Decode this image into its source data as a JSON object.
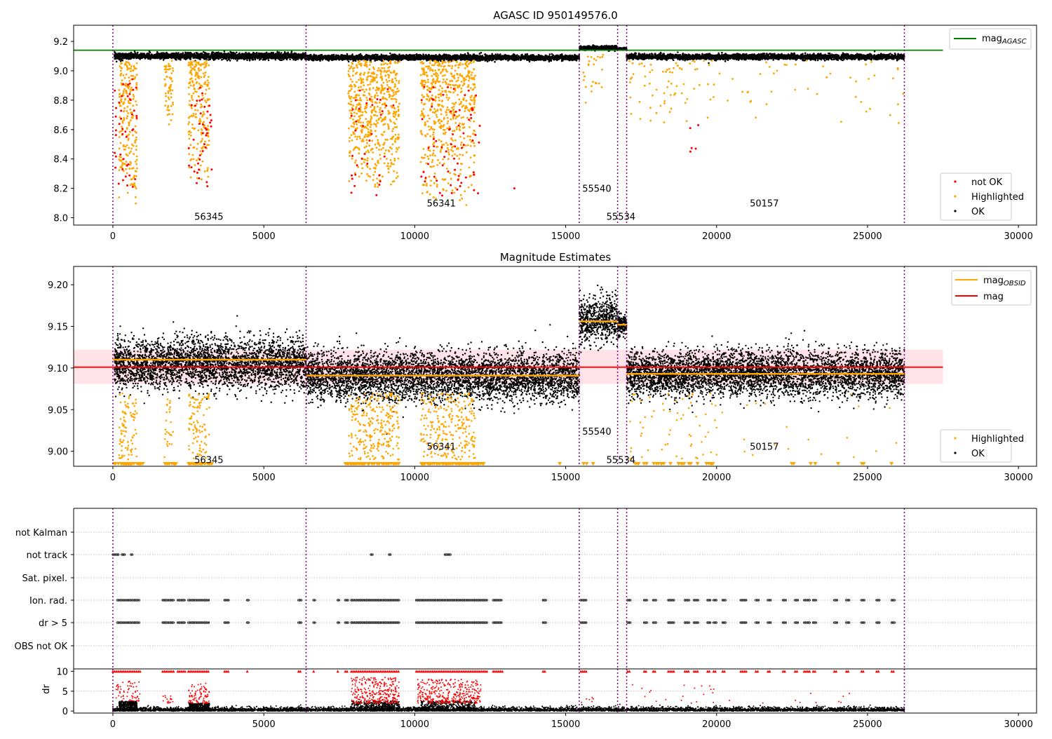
{
  "figure": {
    "vlines_x": [
      0,
      6400,
      15450,
      16720,
      17020,
      26220
    ],
    "colors": {
      "orange": "#ffa500",
      "red": "#ff0000",
      "black": "#000000",
      "green": "#008000",
      "purple": "#800080",
      "band": "#ffc0cb"
    }
  },
  "chart_data": [
    {
      "id": "panel1",
      "type": "scatter",
      "title": "AGASC ID 950149576.0",
      "xlim": [
        -1300,
        30600
      ],
      "ylim": [
        7.95,
        9.31
      ],
      "xticks": [
        0,
        5000,
        10000,
        15000,
        20000,
        25000,
        30000
      ],
      "yticks": [
        8.0,
        8.2,
        8.4,
        8.6,
        8.8,
        9.0,
        9.2
      ],
      "ytick_labels": [
        "8.0",
        "8.2",
        "8.4",
        "8.6",
        "8.8",
        "9.0",
        "9.2"
      ],
      "hline": {
        "name": "mag",
        "sub": "AGASC",
        "y": 9.14,
        "x_range": [
          -1300,
          27500
        ],
        "color": "#008000"
      },
      "legend_top": [
        {
          "label": "mag",
          "sub": "AGASC",
          "color": "#008000",
          "marker": "line"
        }
      ],
      "legend_bottom": [
        {
          "label": "not OK",
          "color": "#ff0000",
          "marker": "dot"
        },
        {
          "label": "Highlighted",
          "color": "#ffa500",
          "marker": "dot"
        },
        {
          "label": "OK",
          "color": "#000000",
          "marker": "dot"
        }
      ],
      "obsid_labels": [
        {
          "text": "56345",
          "x": 2700,
          "y": 8.01
        },
        {
          "text": "56341",
          "x": 10400,
          "y": 8.1
        },
        {
          "text": "55540",
          "x": 15550,
          "y": 8.2
        },
        {
          "text": "55534",
          "x": 16350,
          "y": 8.01
        },
        {
          "text": "50157",
          "x": 21100,
          "y": 8.1
        }
      ],
      "ok_segments": [
        {
          "x": [
            50,
            6400
          ],
          "center": 9.1,
          "spread": 0.03
        },
        {
          "x": [
            6400,
            15450
          ],
          "center": 9.09,
          "spread": 0.025
        },
        {
          "x": [
            15450,
            16720
          ],
          "center": 9.155,
          "spread": 0.02
        },
        {
          "x": [
            16720,
            17020
          ],
          "center": 9.15,
          "spread": 0.01
        },
        {
          "x": [
            17020,
            26220
          ],
          "center": 9.095,
          "spread": 0.025
        }
      ],
      "highlight_clusters": [
        {
          "x": [
            200,
            800
          ],
          "ymin": 8.05,
          "ymax": 9.07,
          "count": 220
        },
        {
          "x": [
            1700,
            2000
          ],
          "ymin": 8.58,
          "ymax": 9.07,
          "count": 60
        },
        {
          "x": [
            2500,
            3200
          ],
          "ymin": 8.2,
          "ymax": 9.07,
          "count": 220
        },
        {
          "x": [
            7800,
            9500
          ],
          "ymin": 8.15,
          "ymax": 9.07,
          "count": 600
        },
        {
          "x": [
            10200,
            12000
          ],
          "ymin": 8.08,
          "ymax": 9.07,
          "count": 600
        },
        {
          "x": [
            15500,
            16300
          ],
          "ymin": 8.75,
          "ymax": 9.12,
          "count": 25
        },
        {
          "x": [
            17100,
            20000
          ],
          "ymin": 8.6,
          "ymax": 9.07,
          "count": 70
        },
        {
          "x": [
            20000,
            26200
          ],
          "ymin": 8.6,
          "ymax": 9.07,
          "count": 45
        }
      ],
      "notok_clusters": [
        {
          "x": [
            50,
            800
          ],
          "ymin": 8.2,
          "ymax": 8.95,
          "count": 45
        },
        {
          "x": [
            2500,
            3300
          ],
          "ymin": 8.2,
          "ymax": 8.9,
          "count": 40
        },
        {
          "x": [
            7900,
            9300
          ],
          "ymin": 8.15,
          "ymax": 8.9,
          "count": 35
        },
        {
          "x": [
            10200,
            12200
          ],
          "ymin": 8.15,
          "ymax": 8.9,
          "count": 70
        },
        {
          "x": [
            13300,
            13300
          ],
          "ymin": 8.2,
          "ymax": 8.2,
          "count": 1
        },
        {
          "x": [
            18800,
            19800
          ],
          "ymin": 8.3,
          "ymax": 8.75,
          "count": 5
        }
      ]
    },
    {
      "id": "panel2",
      "type": "scatter",
      "title": "Magnitude Estimates",
      "xlim": [
        -1300,
        30600
      ],
      "ylim": [
        8.982,
        9.222
      ],
      "xticks": [
        0,
        5000,
        10000,
        15000,
        20000,
        25000,
        30000
      ],
      "yticks": [
        9.0,
        9.05,
        9.1,
        9.15,
        9.2
      ],
      "ytick_labels": [
        "9.00",
        "9.05",
        "9.10",
        "9.15",
        "9.20"
      ],
      "band": {
        "y": [
          9.081,
          9.122
        ],
        "x_range": [
          -1300,
          27500
        ]
      },
      "mag_line": {
        "y": 9.101,
        "x_range": [
          -1300,
          27500
        ],
        "color": "#ff0000"
      },
      "obsid_mag_segments": [
        {
          "x": [
            0,
            6400
          ],
          "y": 9.11
        },
        {
          "x": [
            6400,
            15450
          ],
          "y": 9.091
        },
        {
          "x": [
            15450,
            16720
          ],
          "y": 9.156
        },
        {
          "x": [
            16720,
            17020
          ],
          "y": 9.152
        },
        {
          "x": [
            17020,
            26220
          ],
          "y": 9.093
        }
      ],
      "legend_top": [
        {
          "label": "mag",
          "sub": "OBSID",
          "color": "#ffa500",
          "marker": "line"
        },
        {
          "label": "mag",
          "sub": "",
          "color": "#ff0000",
          "marker": "line"
        }
      ],
      "legend_bottom": [
        {
          "label": "Highlighted",
          "color": "#ffa500",
          "marker": "dot"
        },
        {
          "label": "OK",
          "color": "#000000",
          "marker": "dot"
        }
      ],
      "obsid_labels": [
        {
          "text": "56345",
          "x": 2700,
          "y": 8.99
        },
        {
          "text": "56341",
          "x": 10400,
          "y": 9.006
        },
        {
          "text": "55540",
          "x": 15550,
          "y": 9.024
        },
        {
          "text": "55534",
          "x": 16350,
          "y": 8.99
        },
        {
          "text": "50157",
          "x": 21100,
          "y": 9.006
        }
      ],
      "ok_segments": [
        {
          "x": [
            50,
            6400
          ],
          "center": 9.105,
          "spread": 0.04
        },
        {
          "x": [
            6400,
            15450
          ],
          "center": 9.09,
          "spread": 0.038
        },
        {
          "x": [
            15450,
            16720
          ],
          "center": 9.158,
          "spread": 0.034
        },
        {
          "x": [
            16720,
            17020
          ],
          "center": 9.152,
          "spread": 0.018
        },
        {
          "x": [
            17020,
            26220
          ],
          "center": 9.093,
          "spread": 0.036
        }
      ],
      "highlight_clusters": [
        {
          "x": [
            200,
            800
          ],
          "ymin": 8.99,
          "ymax": 9.07,
          "count": 90
        },
        {
          "x": [
            1700,
            2000
          ],
          "ymin": 8.99,
          "ymax": 9.07,
          "count": 25
        },
        {
          "x": [
            2500,
            3200
          ],
          "ymin": 8.99,
          "ymax": 9.07,
          "count": 100
        },
        {
          "x": [
            7800,
            9500
          ],
          "ymin": 8.99,
          "ymax": 9.07,
          "count": 260
        },
        {
          "x": [
            10200,
            12000
          ],
          "ymin": 8.99,
          "ymax": 9.07,
          "count": 260
        },
        {
          "x": [
            17100,
            20000
          ],
          "ymin": 8.99,
          "ymax": 9.07,
          "count": 60
        },
        {
          "x": [
            20000,
            26200
          ],
          "ymin": 8.99,
          "ymax": 9.07,
          "count": 20
        }
      ],
      "clipped_markers": [
        {
          "x": [
            50,
            1000
          ],
          "count": 40
        },
        {
          "x": [
            1700,
            2100
          ],
          "count": 14
        },
        {
          "x": [
            2500,
            3300
          ],
          "count": 30
        },
        {
          "x": [
            7700,
            9500
          ],
          "count": 70
        },
        {
          "x": [
            10200,
            12300
          ],
          "count": 90
        },
        {
          "x": [
            14200,
            16000
          ],
          "count": 4
        },
        {
          "x": [
            17300,
            19900
          ],
          "count": 26
        },
        {
          "x": [
            22000,
            26000
          ],
          "count": 8
        }
      ]
    },
    {
      "id": "panel3",
      "type": "scatter",
      "xlim": [
        -1300,
        30600
      ],
      "categories": [
        "not Kalman",
        "not track",
        "Sat. pixel.",
        "Ion. rad.",
        "dr > 5",
        "OBS not OK"
      ],
      "flag_ranges": {
        "not track": [
          [
            0,
            200
          ],
          [
            300,
            400
          ],
          [
            600,
            650
          ],
          [
            8550,
            8600
          ],
          [
            9150,
            9200
          ],
          [
            11000,
            11200
          ]
        ],
        "Ion. rad.": [
          [
            150,
            900
          ],
          [
            1650,
            2050
          ],
          [
            2150,
            2400
          ],
          [
            2500,
            3200
          ],
          [
            3700,
            3850
          ],
          [
            4450,
            4500
          ],
          [
            6150,
            6250
          ],
          [
            6650,
            6700
          ],
          [
            7450,
            7500
          ],
          [
            7700,
            7800
          ],
          [
            7900,
            9500
          ],
          [
            10050,
            12400
          ],
          [
            12600,
            12900
          ],
          [
            14250,
            14350
          ],
          [
            15500,
            15700
          ],
          [
            17050,
            17150
          ],
          [
            17600,
            17700
          ],
          [
            17900,
            18000
          ],
          [
            18400,
            18600
          ],
          [
            18950,
            19100
          ],
          [
            19250,
            19400
          ],
          [
            19700,
            19800
          ],
          [
            19900,
            20000
          ],
          [
            20200,
            20300
          ],
          [
            20800,
            21000
          ],
          [
            21300,
            21400
          ],
          [
            21700,
            21800
          ],
          [
            22200,
            22300
          ],
          [
            22600,
            22700
          ],
          [
            22900,
            23100
          ],
          [
            23200,
            23300
          ],
          [
            23900,
            24000
          ],
          [
            24300,
            24400
          ],
          [
            24800,
            24900
          ],
          [
            25300,
            25400
          ],
          [
            25800,
            25900
          ]
        ],
        "dr > 5": [
          [
            150,
            900
          ],
          [
            1650,
            2050
          ],
          [
            2150,
            2400
          ],
          [
            2500,
            3200
          ],
          [
            3700,
            3850
          ],
          [
            4450,
            4500
          ],
          [
            6150,
            6250
          ],
          [
            6650,
            6700
          ],
          [
            7450,
            7500
          ],
          [
            7700,
            7800
          ],
          [
            7900,
            9500
          ],
          [
            10050,
            12400
          ],
          [
            12600,
            12900
          ],
          [
            14250,
            14350
          ],
          [
            15500,
            15700
          ],
          [
            17050,
            17150
          ],
          [
            17600,
            17700
          ],
          [
            17900,
            18000
          ],
          [
            18400,
            18600
          ],
          [
            18950,
            19100
          ],
          [
            19250,
            19400
          ],
          [
            19700,
            19800
          ],
          [
            19900,
            20000
          ],
          [
            20200,
            20300
          ],
          [
            20800,
            21000
          ],
          [
            21300,
            21400
          ],
          [
            21700,
            21800
          ],
          [
            22200,
            22300
          ],
          [
            22600,
            22700
          ],
          [
            22900,
            23100
          ],
          [
            23200,
            23300
          ],
          [
            23900,
            24000
          ],
          [
            24300,
            24400
          ],
          [
            24800,
            24900
          ],
          [
            25300,
            25400
          ],
          [
            25800,
            25900
          ]
        ]
      }
    },
    {
      "id": "panel4",
      "type": "scatter",
      "ylabel": "dr",
      "xlim": [
        -1300,
        30600
      ],
      "ylim": [
        -0.5,
        10.6
      ],
      "xticks": [
        0,
        5000,
        10000,
        15000,
        20000,
        25000,
        30000
      ],
      "yticks": [
        0,
        5,
        10
      ],
      "ytick_labels": [
        "0",
        "5",
        "10"
      ],
      "baseline": {
        "center": 0.5,
        "spread": 1.3
      },
      "bump_clusters": [
        {
          "x": [
            200,
            800
          ],
          "ymax": 2.5
        },
        {
          "x": [
            2500,
            3200
          ],
          "ymax": 2.0
        },
        {
          "x": [
            7900,
            9500
          ],
          "ymax": 2.5
        },
        {
          "x": [
            10200,
            12000
          ],
          "ymax": 2.5
        }
      ],
      "red_clusters": [
        {
          "x": [
            100,
            900
          ],
          "ymin": 2.5,
          "ymax": 7.5,
          "count": 60
        },
        {
          "x": [
            1650,
            2050
          ],
          "ymin": 2,
          "ymax": 4,
          "count": 15
        },
        {
          "x": [
            2500,
            3200
          ],
          "ymin": 2,
          "ymax": 7,
          "count": 90
        },
        {
          "x": [
            7900,
            9500
          ],
          "ymin": 2,
          "ymax": 8.5,
          "count": 300
        },
        {
          "x": [
            10100,
            12200
          ],
          "ymin": 2,
          "ymax": 8,
          "count": 350
        },
        {
          "x": [
            15500,
            16000
          ],
          "ymin": 2,
          "ymax": 4,
          "count": 6
        },
        {
          "x": [
            17100,
            20000
          ],
          "ymin": 2,
          "ymax": 7,
          "count": 20
        },
        {
          "x": [
            20000,
            26000
          ],
          "ymin": 2,
          "ymax": 7,
          "count": 10
        }
      ],
      "red_at_10": [
        [
          0,
          900
        ],
        [
          1650,
          2050
        ],
        [
          2150,
          2400
        ],
        [
          2500,
          3200
        ],
        [
          3700,
          3850
        ],
        [
          4450,
          4500
        ],
        [
          6150,
          6250
        ],
        [
          6650,
          6700
        ],
        [
          7450,
          7500
        ],
        [
          7700,
          7800
        ],
        [
          7900,
          9500
        ],
        [
          10050,
          12400
        ],
        [
          12600,
          12900
        ],
        [
          14250,
          14350
        ],
        [
          15500,
          15700
        ],
        [
          17050,
          17150
        ],
        [
          17600,
          17700
        ],
        [
          17900,
          18000
        ],
        [
          18400,
          18600
        ],
        [
          18950,
          19100
        ],
        [
          19250,
          19400
        ],
        [
          19700,
          19800
        ],
        [
          19900,
          20000
        ],
        [
          20200,
          20300
        ],
        [
          20800,
          21000
        ],
        [
          21300,
          21400
        ],
        [
          21700,
          21800
        ],
        [
          22200,
          22300
        ],
        [
          22600,
          22700
        ],
        [
          22900,
          23100
        ],
        [
          23200,
          23300
        ],
        [
          23900,
          24000
        ],
        [
          24300,
          24400
        ],
        [
          24800,
          24900
        ],
        [
          25300,
          25400
        ],
        [
          25800,
          25900
        ]
      ]
    }
  ]
}
